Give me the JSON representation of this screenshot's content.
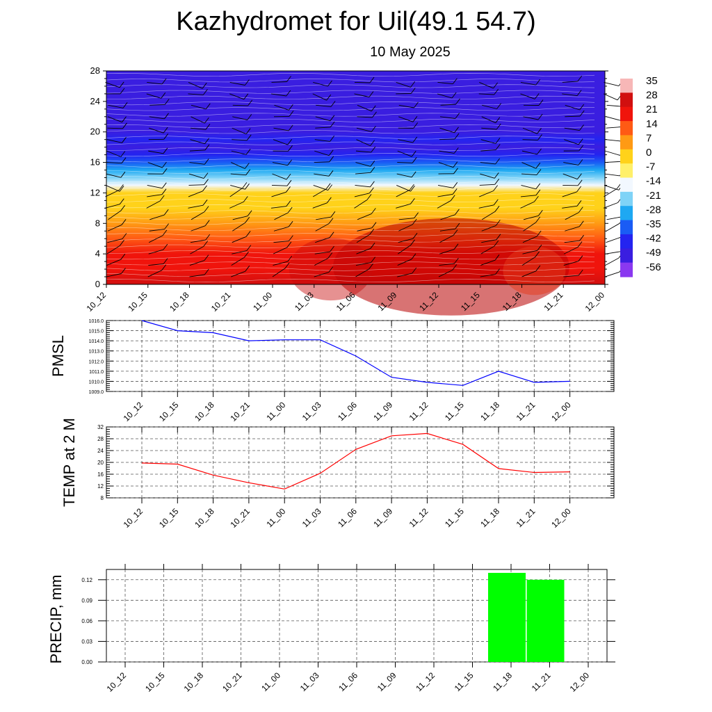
{
  "title": "Kazhydromet for Uil(49.1 54.7)",
  "subtitle": "10 May 2025",
  "chart_data": [
    {
      "type": "heatmap",
      "time_labels": [
        "10_12",
        "10_15",
        "10_18",
        "10_21",
        "11_00",
        "11_03",
        "11_06",
        "11_09",
        "11_12",
        "11_15",
        "11_18",
        "11_21",
        "12_00"
      ],
      "y_ticks": [
        0,
        4,
        8,
        12,
        16,
        20,
        24,
        28
      ],
      "ylim": [
        0,
        28
      ],
      "colorbar": {
        "labels": [
          "35",
          "28",
          "21",
          "14",
          "7",
          "0",
          "-7",
          "-14",
          "-21",
          "-28",
          "-35",
          "-42",
          "-49",
          "-56"
        ],
        "stops": [
          {
            "v": 35,
            "color": "#f7b7b7"
          },
          {
            "v": 28,
            "color": "#d10f0f"
          },
          {
            "v": 21,
            "color": "#f0140c"
          },
          {
            "v": 14,
            "color": "#ff5a14"
          },
          {
            "v": 7,
            "color": "#ff9a14"
          },
          {
            "v": 0,
            "color": "#ffd21a"
          },
          {
            "v": -7,
            "color": "#fff06a"
          },
          {
            "v": -14,
            "color": "#f2f8ff"
          },
          {
            "v": -21,
            "color": "#7fd3f7"
          },
          {
            "v": -28,
            "color": "#1ea8f2"
          },
          {
            "v": -35,
            "color": "#1a5cf5"
          },
          {
            "v": -42,
            "color": "#2424f0"
          },
          {
            "v": -49,
            "color": "#3a1ee0"
          },
          {
            "v": -56,
            "color": "#8a38f0"
          }
        ]
      },
      "temperature_by_height": [
        {
          "h": 0,
          "t": 27
        },
        {
          "h": 2,
          "t": 23
        },
        {
          "h": 4,
          "t": 18
        },
        {
          "h": 6,
          "t": 12
        },
        {
          "h": 8,
          "t": 7
        },
        {
          "h": 10,
          "t": 3
        },
        {
          "h": 12,
          "t": -3
        },
        {
          "h": 13,
          "t": -12
        },
        {
          "h": 14,
          "t": -19
        },
        {
          "h": 15,
          "t": -27
        },
        {
          "h": 16,
          "t": -35
        },
        {
          "h": 17,
          "t": -42
        },
        {
          "h": 18,
          "t": -49
        },
        {
          "h": 19,
          "t": -45
        },
        {
          "h": 20,
          "t": -47
        },
        {
          "h": 22,
          "t": -50
        },
        {
          "h": 24,
          "t": -51
        },
        {
          "h": 26,
          "t": -49
        },
        {
          "h": 28,
          "t": -52
        }
      ],
      "wind_barbs": true
    },
    {
      "type": "line",
      "ylabel": "PMSL",
      "x": [
        "10_12",
        "10_15",
        "10_18",
        "10_21",
        "11_00",
        "11_03",
        "11_06",
        "11_09",
        "11_12",
        "11_15",
        "11_18",
        "11_21",
        "12_00"
      ],
      "series": [
        {
          "values": [
            1016.0,
            1015.0,
            1014.8,
            1014.0,
            1014.1,
            1014.1,
            1012.5,
            1010.4,
            1009.9,
            1009.6,
            1011.0,
            1009.9,
            1010.0
          ],
          "color": "#0000ff"
        }
      ],
      "y_ticks": [
        "1016.0",
        "1015.0",
        "1014.0",
        "1013.0",
        "1012.0",
        "1011.0",
        "1010.0",
        "1009.0"
      ],
      "ylim": [
        1009.0,
        1016.0
      ]
    },
    {
      "type": "line",
      "ylabel": "TEMP at 2 M",
      "x": [
        "10_12",
        "10_15",
        "10_18",
        "10_21",
        "11_00",
        "11_03",
        "11_06",
        "11_09",
        "11_12",
        "11_15",
        "11_18",
        "11_21",
        "12_00"
      ],
      "series": [
        {
          "values": [
            19.8,
            19.4,
            15.7,
            13.1,
            11.0,
            16.3,
            24.4,
            29.0,
            29.8,
            26.1,
            17.9,
            16.6,
            16.8
          ],
          "color": "#ff0000"
        }
      ],
      "y_ticks": [
        "32",
        "28",
        "24",
        "20",
        "16",
        "12",
        "8"
      ],
      "ylim": [
        8,
        32
      ]
    },
    {
      "type": "bar",
      "ylabel": "PRECIP, mm",
      "categories": [
        "10_12",
        "10_15",
        "10_18",
        "10_21",
        "11_00",
        "11_03",
        "11_06",
        "11_09",
        "11_12",
        "11_15",
        "11_18",
        "11_21",
        "12_00"
      ],
      "values": [
        0,
        0,
        0,
        0,
        0,
        0,
        0,
        0,
        0,
        0,
        0.13,
        0.12,
        0
      ],
      "color": "#00ff00",
      "y_ticks": [
        "0.00",
        "0.03",
        "0.06",
        "0.09",
        "0.12"
      ],
      "ylim": [
        0,
        0.135
      ]
    }
  ]
}
